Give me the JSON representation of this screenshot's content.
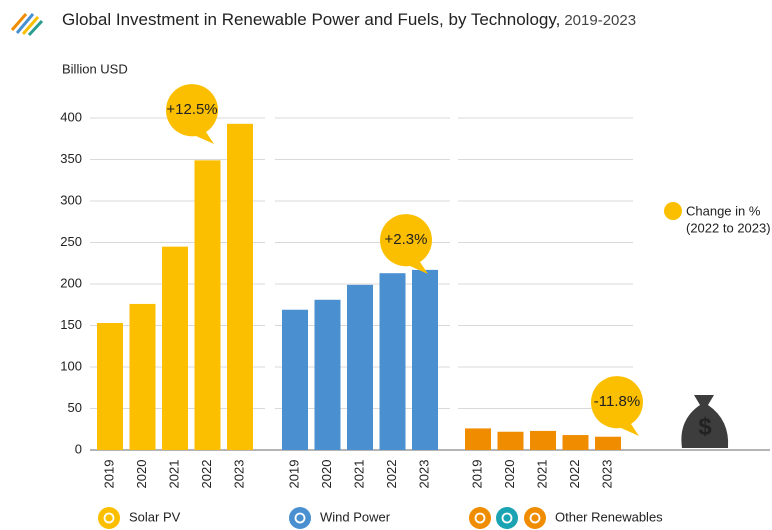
{
  "chart_data": {
    "type": "bar",
    "title": "Global Investment in Renewable Power and Fuels, by Technology,",
    "period": "2019-2023",
    "y_label": "Billion USD",
    "categories": [
      "2019",
      "2020",
      "2021",
      "2022",
      "2023"
    ],
    "series": [
      {
        "name": "Solar PV",
        "color": "#fbbf00",
        "values": [
          153,
          176,
          245,
          349,
          393
        ],
        "change": "+12.5%"
      },
      {
        "name": "Wind Power",
        "color": "#4a90d0",
        "values": [
          169,
          181,
          199,
          213,
          217
        ],
        "change": "+2.3%"
      },
      {
        "name": "Other Renewables",
        "color": "#f08c00",
        "values": [
          26,
          22,
          23,
          18,
          16
        ],
        "change": "-11.8%"
      }
    ],
    "ylim": [
      0,
      400
    ],
    "yticks": [
      0,
      50,
      100,
      150,
      200,
      250,
      300,
      350,
      400
    ],
    "grid": true,
    "annotation_legend": [
      "Change in %",
      "(2022 to 2023)"
    ],
    "annotation_color": "#fbbf00"
  }
}
